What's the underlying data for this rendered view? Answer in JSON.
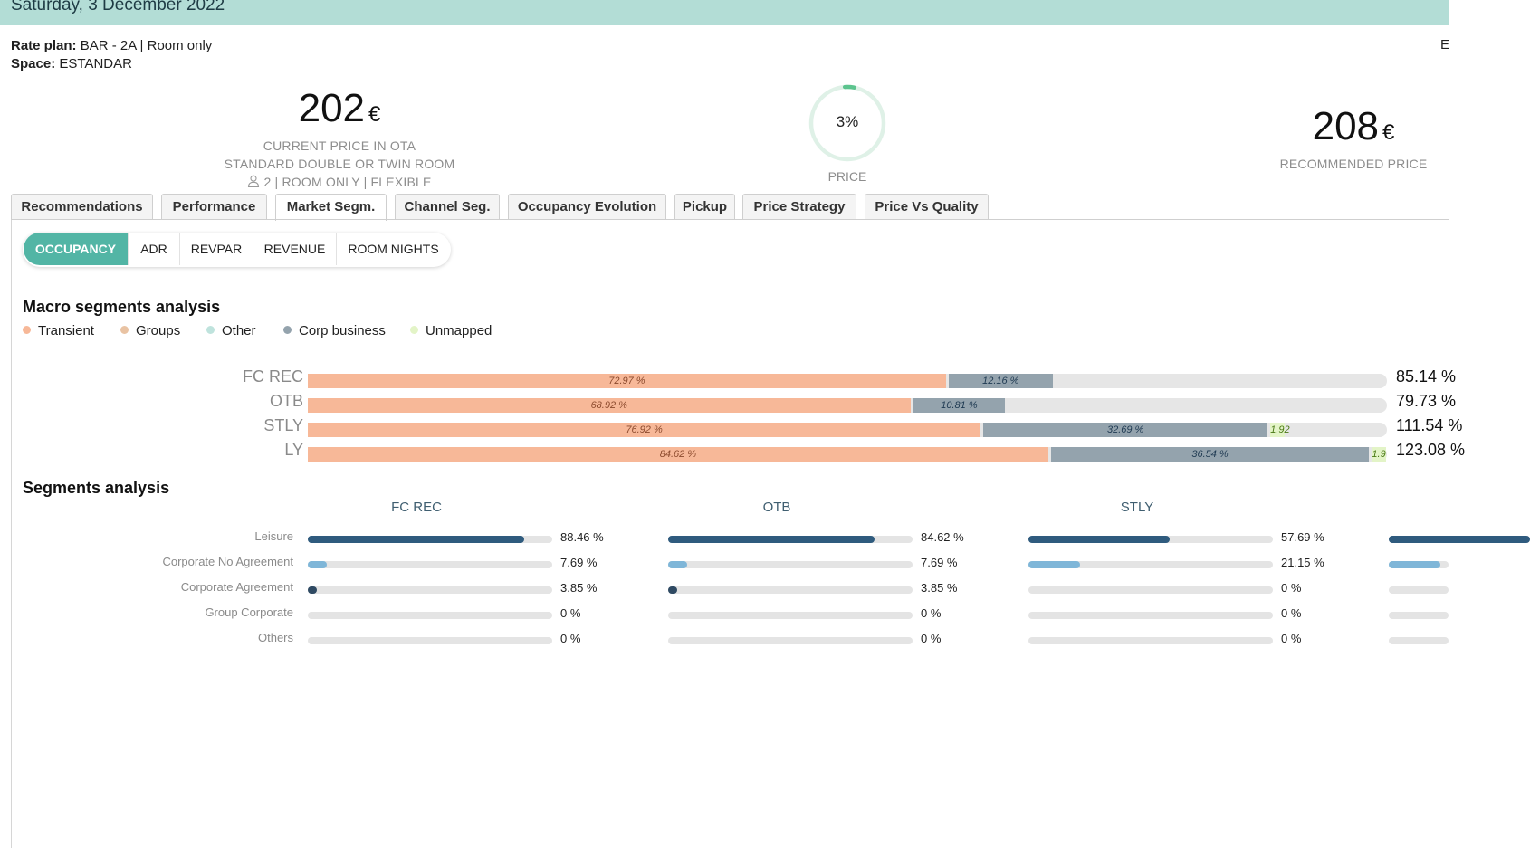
{
  "header": {
    "date": "Saturday, 3 December 2022"
  },
  "meta": {
    "rate_plan_label": "Rate plan:",
    "rate_plan_value": "BAR - 2A | Room only",
    "space_label": "Space:",
    "space_value": "ESTANDAR",
    "edge_letter": "E"
  },
  "current_price": {
    "value": "202",
    "currency": "€",
    "label": "CURRENT PRICE IN OTA",
    "room": "STANDARD DOUBLE OR TWIN ROOM",
    "details": "2 | ROOM ONLY | FLEXIBLE"
  },
  "price_gauge": {
    "value": "3%",
    "fraction": 0.03,
    "label": "PRICE"
  },
  "recommended_price": {
    "value": "208",
    "currency": "€",
    "label": "RECOMMENDED PRICE"
  },
  "tabs": [
    {
      "label": "Recommendations",
      "active": false
    },
    {
      "label": "Performance",
      "active": false
    },
    {
      "label": "Market Segm.",
      "active": true
    },
    {
      "label": "Channel Seg.",
      "active": false
    },
    {
      "label": "Occupancy Evolution",
      "active": false
    },
    {
      "label": "Pickup",
      "active": false
    },
    {
      "label": "Price Strategy",
      "active": false
    },
    {
      "label": "Price Vs Quality",
      "active": false
    }
  ],
  "metric_pills": [
    {
      "label": "OCCUPANCY",
      "active": true
    },
    {
      "label": "ADR",
      "active": false
    },
    {
      "label": "REVPAR",
      "active": false
    },
    {
      "label": "REVENUE",
      "active": false
    },
    {
      "label": "ROOM NIGHTS",
      "active": false
    }
  ],
  "macro": {
    "title": "Macro segments analysis",
    "legend": [
      {
        "label": "Transient",
        "color": "#f7b898"
      },
      {
        "label": "Groups",
        "color": "#e9c3a3"
      },
      {
        "label": "Other",
        "color": "#bfe3dd"
      },
      {
        "label": "Corp business",
        "color": "#94a3ad"
      },
      {
        "label": "Unmapped",
        "color": "#e3f4c7"
      }
    ],
    "rows": [
      {
        "label": "FC REC",
        "total": "85.14 %",
        "segments": [
          {
            "text": "72.97 %",
            "value": 72.97,
            "color": "#f7b898",
            "text_color": "#8c4a2d"
          },
          {
            "text": "12.16 %",
            "value": 12.16,
            "color": "#94a3ad",
            "text_color": "#1f3a52"
          }
        ]
      },
      {
        "label": "OTB",
        "total": "79.73 %",
        "segments": [
          {
            "text": "68.92 %",
            "value": 68.92,
            "color": "#f7b898",
            "text_color": "#8c4a2d"
          },
          {
            "text": "10.81 %",
            "value": 10.81,
            "color": "#94a3ad",
            "text_color": "#1f3a52"
          }
        ]
      },
      {
        "label": "STLY",
        "total": "111.54 %",
        "segments": [
          {
            "text": "76.92 %",
            "value": 76.92,
            "color": "#f7b898",
            "text_color": "#8c4a2d"
          },
          {
            "text": "32.69 %",
            "value": 32.69,
            "color": "#94a3ad",
            "text_color": "#1f3a52"
          },
          {
            "text": "1.92",
            "value": 1.92,
            "color": "#e3f4c7",
            "text_color": "#4b7a17"
          }
        ]
      },
      {
        "label": "LY",
        "total": "123.08 %",
        "segments": [
          {
            "text": "84.62 %",
            "value": 84.62,
            "color": "#f7b898",
            "text_color": "#8c4a2d"
          },
          {
            "text": "36.54 %",
            "value": 36.54,
            "color": "#94a3ad",
            "text_color": "#1f3a52"
          },
          {
            "text": "1.9",
            "value": 1.92,
            "color": "#e3f4c7",
            "text_color": "#4b7a17"
          }
        ]
      }
    ]
  },
  "segments": {
    "title": "Segments analysis",
    "labels": [
      "Leisure",
      "Corporate No Agreement",
      "Corporate Agreement",
      "Group Corporate",
      "Others"
    ],
    "colors": [
      "#2f5b7e",
      "#7fb6d8",
      "#2f4a63",
      "#2f4a63",
      "#2f4a63"
    ],
    "columns": [
      {
        "header": "FC REC",
        "values": [
          88.46,
          7.69,
          3.85,
          0,
          0
        ],
        "texts": [
          "88.46  %",
          "7.69  %",
          "3.85  %",
          "0  %",
          "0  %"
        ]
      },
      {
        "header": "OTB",
        "values": [
          84.62,
          7.69,
          3.85,
          0,
          0
        ],
        "texts": [
          "84.62  %",
          "7.69  %",
          "3.85  %",
          "0  %",
          "0  %"
        ]
      },
      {
        "header": "STLY",
        "values": [
          57.69,
          21.15,
          0,
          0,
          0
        ],
        "texts": [
          "57.69  %",
          "21.15  %",
          "0  %",
          "0  %",
          "0  %"
        ]
      },
      {
        "header": "",
        "values": [
          57.69,
          21.15,
          0,
          0,
          0
        ],
        "texts": [
          "",
          "",
          "",
          "",
          ""
        ]
      }
    ]
  }
}
